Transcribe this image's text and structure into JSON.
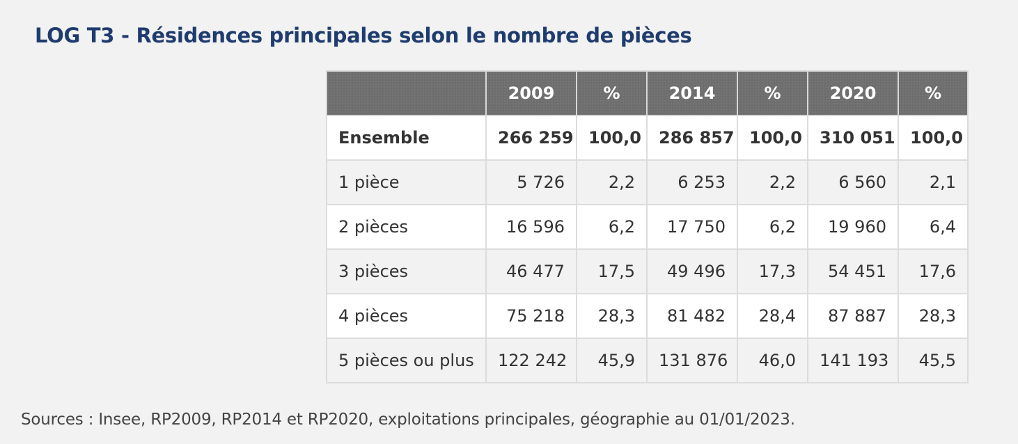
{
  "title": "LOG T3 - Résidences principales selon le nombre de pièces",
  "table": {
    "headers": [
      "",
      "2009",
      "%",
      "2014",
      "%",
      "2020",
      "%"
    ],
    "rows": [
      {
        "label": "Ensemble",
        "values": [
          "266 259",
          "100,0",
          "286 857",
          "100,0",
          "310 051",
          "100,0"
        ]
      },
      {
        "label": "1 pièce",
        "values": [
          "5 726",
          "2,2",
          "6 253",
          "2,2",
          "6 560",
          "2,1"
        ]
      },
      {
        "label": "2 pièces",
        "values": [
          "16 596",
          "6,2",
          "17 750",
          "6,2",
          "19 960",
          "6,4"
        ]
      },
      {
        "label": "3 pièces",
        "values": [
          "46 477",
          "17,5",
          "49 496",
          "17,3",
          "54 451",
          "17,6"
        ]
      },
      {
        "label": "4 pièces",
        "values": [
          "75 218",
          "28,3",
          "81 482",
          "28,4",
          "87 887",
          "28,3"
        ]
      },
      {
        "label": "5 pièces ou plus",
        "values": [
          "122 242",
          "45,9",
          "131 876",
          "46,0",
          "141 193",
          "45,5"
        ]
      }
    ]
  },
  "source": "Sources : Insee, RP2009, RP2014 et RP2020, exploitations principales, géographie au 01/01/2023.",
  "colors": {
    "title": "#1f3c6e",
    "header_bg": "#6e6e6e",
    "page_bg": "#f2f2f2"
  }
}
